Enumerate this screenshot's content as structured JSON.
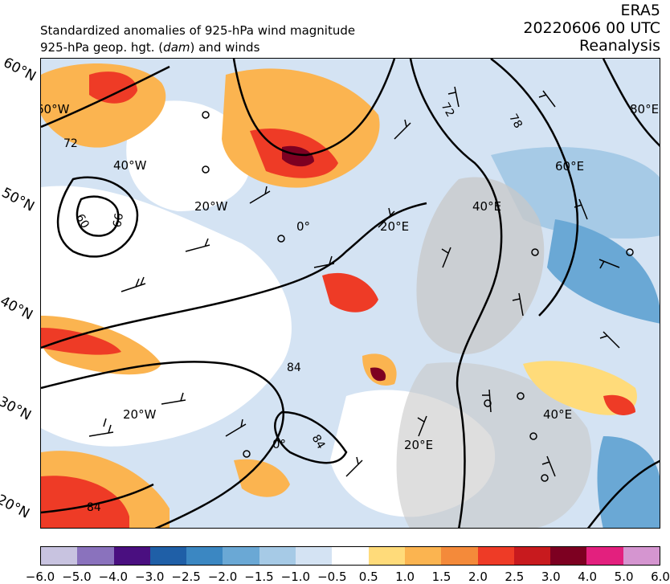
{
  "header": {
    "line1": "Standardized anomalies of 925-hPa wind magnitude",
    "line2": "925-hPa geop. hgt. (dam) and winds",
    "source": "ERA5",
    "datetime": "20220606 00 UTC",
    "product": "Reanalysis"
  },
  "lat_labels": [
    "60°N",
    "50°N",
    "40°N",
    "30°N",
    "20°N"
  ],
  "lon_labels": [
    "60°W",
    "40°W",
    "20°W",
    "0°",
    "20°E",
    "40°E",
    "60°E",
    "80°E",
    "20°W",
    "0°",
    "20°E",
    "40°E"
  ],
  "contour_labels": [
    "72",
    "60",
    "66",
    "72",
    "78",
    "84",
    "84",
    "84"
  ],
  "colorbar": {
    "colors": [
      "#c8c3e0",
      "#8a72bd",
      "#4a0f80",
      "#1f5fa7",
      "#3b87c2",
      "#6aa8d5",
      "#a6cae6",
      "#d4e3f3",
      "#ffffff",
      "#ffdb7a",
      "#fbb450",
      "#f48a3a",
      "#ee3b26",
      "#c81a1e",
      "#7d0021",
      "#e3207e",
      "#d595d0"
    ],
    "ticks": [
      "−6.0",
      "−5.0",
      "−4.0",
      "−3.0",
      "−2.5",
      "−2.0",
      "−1.5",
      "−1.0",
      "−0.5",
      "0.5",
      "1.0",
      "1.5",
      "2.0",
      "2.5",
      "3.0",
      "4.0",
      "5.0",
      "6.0"
    ]
  }
}
